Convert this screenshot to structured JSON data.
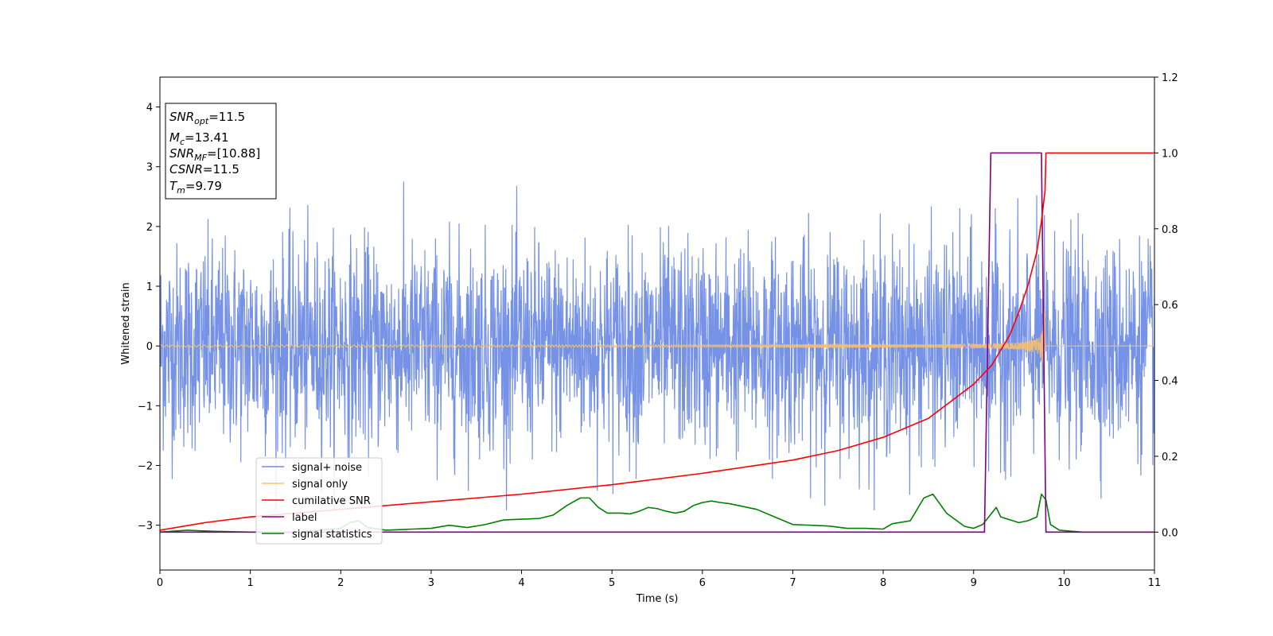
{
  "chart_data": {
    "type": "line",
    "xlabel": "Time (s)",
    "ylabel": "Whitened strain",
    "xlim": [
      0,
      11
    ],
    "ylim_left": [
      -3.75,
      4.5
    ],
    "ylim_right": [
      -0.1,
      1.2
    ],
    "xticks": [
      "0",
      "1",
      "2",
      "3",
      "4",
      "5",
      "6",
      "7",
      "8",
      "9",
      "10",
      "11"
    ],
    "yticks_left": [
      "−3",
      "−2",
      "−1",
      "0",
      "1",
      "2",
      "3",
      "4"
    ],
    "yticks_right": [
      "0.0",
      "0.2",
      "0.4",
      "0.6",
      "0.8",
      "1.0",
      "1.2"
    ],
    "grid": false,
    "legend_position": "lower-left",
    "info_box": [
      {
        "main": "SNR",
        "sub": "opt",
        "value": "=11.5"
      },
      {
        "main": "M",
        "sub": "c",
        "value": "=13.41"
      },
      {
        "main": "SNR",
        "sub": "MF",
        "value": "=[10.88]"
      },
      {
        "main": "CSNR",
        "sub": "",
        "value": "=11.5"
      },
      {
        "main": "T",
        "sub": "m",
        "value": "=9.79"
      }
    ],
    "series": [
      {
        "name": "signal+ noise",
        "color": "#6f8ce6",
        "axis": "left",
        "kind": "noise",
        "std": 0.85,
        "t_range": [
          0,
          11
        ]
      },
      {
        "name": "signal only",
        "color": "#f5c06e",
        "axis": "left",
        "kind": "chirp",
        "merger_time": 9.79,
        "peak_amplitude": 1.0
      },
      {
        "name": "cumilative SNR",
        "color": "#ff0000",
        "axis": "right",
        "x": [
          0,
          0.5,
          1,
          2,
          3,
          4,
          5,
          6,
          7,
          7.5,
          8,
          8.5,
          9,
          9.2,
          9.4,
          9.5,
          9.6,
          9.7,
          9.75,
          9.79,
          9.8,
          11
        ],
        "y": [
          0.005,
          0.025,
          0.04,
          0.06,
          0.08,
          0.1,
          0.125,
          0.155,
          0.19,
          0.215,
          0.25,
          0.3,
          0.39,
          0.44,
          0.52,
          0.58,
          0.65,
          0.74,
          0.82,
          0.9,
          1.0,
          1.0
        ]
      },
      {
        "name": "label",
        "color": "#800080",
        "axis": "right",
        "x": [
          0,
          9.12,
          9.19,
          9.75,
          9.8,
          11
        ],
        "y": [
          0,
          0,
          1,
          1,
          0,
          0
        ]
      },
      {
        "name": "signal statistics",
        "color": "#008000",
        "axis": "right",
        "x": [
          0,
          0.3,
          0.6,
          1,
          1.5,
          2,
          2.1,
          2.2,
          2.3,
          2.5,
          2.8,
          3,
          3.2,
          3.4,
          3.6,
          3.8,
          4,
          4.2,
          4.35,
          4.5,
          4.65,
          4.75,
          4.85,
          4.95,
          5.1,
          5.2,
          5.3,
          5.4,
          5.5,
          5.6,
          5.7,
          5.8,
          5.9,
          6,
          6.1,
          6.2,
          6.3,
          6.4,
          6.5,
          6.6,
          6.8,
          7,
          7.2,
          7.4,
          7.6,
          7.8,
          8,
          8.1,
          8.3,
          8.45,
          8.55,
          8.7,
          8.9,
          9.0,
          9.1,
          9.2,
          9.25,
          9.3,
          9.5,
          9.6,
          9.7,
          9.75,
          9.8,
          9.85,
          9.95,
          10.2,
          11
        ],
        "y": [
          0,
          0.005,
          0.002,
          0,
          0,
          0.01,
          0.025,
          0.03,
          0.012,
          0.005,
          0.008,
          0.01,
          0.018,
          0.012,
          0.02,
          0.032,
          0.034,
          0.036,
          0.045,
          0.07,
          0.09,
          0.09,
          0.065,
          0.05,
          0.05,
          0.048,
          0.055,
          0.065,
          0.062,
          0.055,
          0.05,
          0.055,
          0.07,
          0.078,
          0.082,
          0.078,
          0.075,
          0.07,
          0.065,
          0.06,
          0.04,
          0.02,
          0.018,
          0.016,
          0.01,
          0.01,
          0.008,
          0.022,
          0.03,
          0.09,
          0.1,
          0.05,
          0.015,
          0.01,
          0.02,
          0.05,
          0.065,
          0.04,
          0.025,
          0.03,
          0.04,
          0.1,
          0.085,
          0.02,
          0.005,
          0,
          0
        ]
      }
    ]
  }
}
